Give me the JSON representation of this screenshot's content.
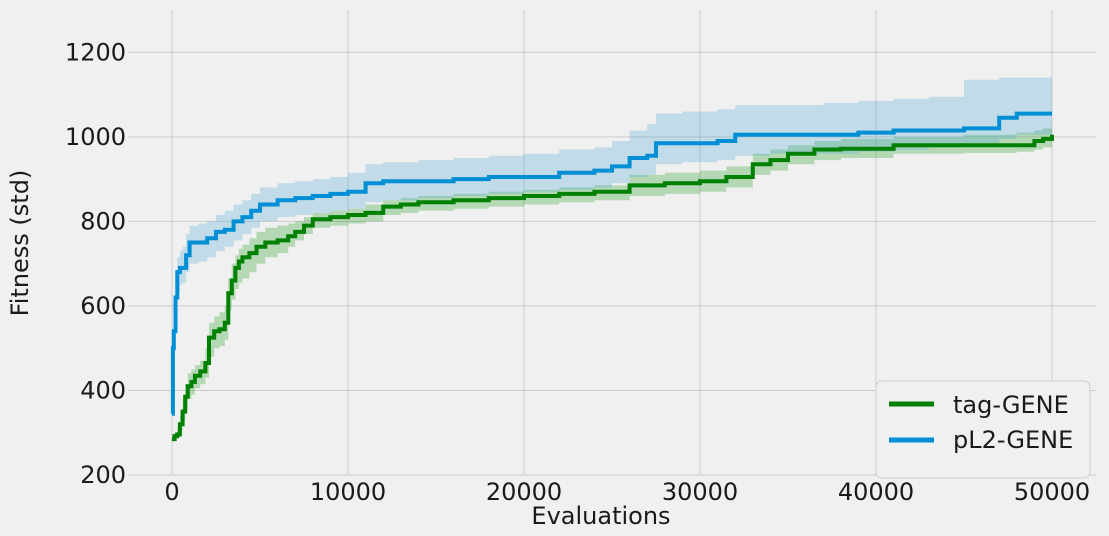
{
  "chart_data": {
    "type": "line",
    "title": "",
    "xlabel": "Evaluations",
    "ylabel": "Fitness (std)",
    "xlim": [
      -2500,
      52500
    ],
    "ylim": [
      200,
      1300
    ],
    "xticks": [
      0,
      10000,
      20000,
      30000,
      40000,
      50000
    ],
    "xtick_labels": [
      "0",
      "10000",
      "20000",
      "30000",
      "40000",
      "50000"
    ],
    "yticks": [
      200,
      400,
      600,
      800,
      1000,
      1200
    ],
    "ytick_labels": [
      "200",
      "400",
      "600",
      "800",
      "1000",
      "1200"
    ],
    "grid": true,
    "legend_position": "lower-right",
    "series": [
      {
        "name": "tag-GENE",
        "color": "#008000",
        "band_color": "#2ca02c",
        "x": [
          0,
          150,
          300,
          450,
          600,
          750,
          900,
          1100,
          1300,
          1600,
          1900,
          2100,
          2400,
          2700,
          3000,
          3200,
          3400,
          3600,
          3800,
          4000,
          4400,
          4800,
          5300,
          6000,
          6600,
          7000,
          7500,
          8000,
          9000,
          10000,
          11000,
          12000,
          13000,
          14000,
          16000,
          18000,
          20000,
          22000,
          24000,
          26000,
          28000,
          30000,
          31500,
          33000,
          34000,
          35000,
          36500,
          38000,
          41000,
          45000,
          48000,
          49000,
          49500,
          50000
        ],
        "y": [
          285,
          292,
          296,
          320,
          350,
          385,
          410,
          420,
          435,
          445,
          465,
          525,
          540,
          545,
          560,
          630,
          660,
          690,
          705,
          715,
          725,
          740,
          750,
          755,
          765,
          775,
          790,
          805,
          810,
          815,
          820,
          835,
          840,
          845,
          850,
          855,
          860,
          865,
          870,
          885,
          890,
          895,
          905,
          935,
          945,
          960,
          970,
          972,
          980,
          980,
          980,
          990,
          995,
          1005
        ],
        "lower": [
          280,
          285,
          288,
          305,
          330,
          355,
          380,
          390,
          405,
          415,
          430,
          480,
          500,
          505,
          520,
          590,
          615,
          640,
          655,
          665,
          680,
          700,
          715,
          725,
          740,
          755,
          770,
          785,
          790,
          795,
          800,
          815,
          820,
          825,
          830,
          835,
          840,
          845,
          850,
          860,
          865,
          870,
          880,
          910,
          920,
          935,
          945,
          950,
          960,
          962,
          965,
          970,
          975,
          980
        ],
        "upper": [
          290,
          300,
          310,
          340,
          375,
          415,
          440,
          450,
          460,
          470,
          500,
          560,
          575,
          585,
          600,
          665,
          700,
          720,
          735,
          745,
          760,
          775,
          785,
          790,
          795,
          800,
          810,
          820,
          825,
          830,
          840,
          850,
          855,
          860,
          865,
          870,
          875,
          880,
          885,
          910,
          915,
          920,
          930,
          960,
          970,
          980,
          990,
          995,
          1000,
          1005,
          1010,
          1015,
          1020,
          1030
        ]
      },
      {
        "name": "pL2-GENE",
        "color": "#008fd5",
        "band_color": "#56acd8",
        "x": [
          0,
          50,
          100,
          200,
          300,
          450,
          600,
          800,
          1000,
          1500,
          2000,
          2500,
          3000,
          3500,
          4000,
          4500,
          5000,
          6000,
          7000,
          8000,
          9000,
          10000,
          11000,
          12000,
          14000,
          16000,
          18000,
          20000,
          22000,
          24000,
          25000,
          26000,
          27000,
          27500,
          29000,
          31000,
          32000,
          34000,
          37000,
          39000,
          41000,
          43000,
          45000,
          47000,
          48000,
          50000
        ],
        "y": [
          345,
          500,
          540,
          620,
          680,
          690,
          690,
          720,
          750,
          750,
          760,
          775,
          780,
          800,
          810,
          825,
          840,
          850,
          855,
          860,
          865,
          870,
          890,
          895,
          895,
          900,
          905,
          905,
          915,
          920,
          930,
          950,
          955,
          985,
          985,
          990,
          1005,
          1005,
          1005,
          1010,
          1015,
          1015,
          1020,
          1045,
          1055,
          1055
        ],
        "lower": [
          340,
          480,
          515,
          585,
          635,
          650,
          655,
          680,
          700,
          705,
          715,
          730,
          740,
          755,
          770,
          785,
          800,
          810,
          815,
          820,
          825,
          830,
          845,
          850,
          855,
          860,
          865,
          870,
          875,
          880,
          890,
          905,
          910,
          935,
          940,
          945,
          955,
          960,
          960,
          965,
          970,
          975,
          980,
          995,
          1005,
          1010
        ],
        "upper": [
          350,
          525,
          575,
          660,
          715,
          730,
          740,
          770,
          790,
          795,
          800,
          815,
          825,
          840,
          850,
          865,
          880,
          890,
          895,
          900,
          905,
          915,
          935,
          940,
          945,
          950,
          955,
          960,
          970,
          975,
          990,
          1015,
          1030,
          1055,
          1060,
          1065,
          1075,
          1075,
          1080,
          1085,
          1090,
          1095,
          1135,
          1140,
          1140,
          1140
        ]
      }
    ]
  }
}
